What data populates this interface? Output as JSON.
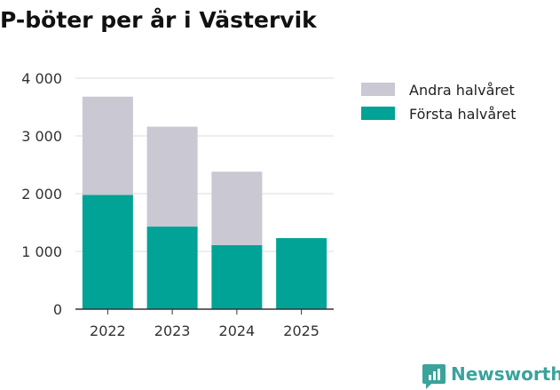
{
  "chart_data": {
    "type": "bar",
    "stacked": true,
    "title": "P-böter per år i Västervik",
    "xlabel": "",
    "ylabel": "",
    "categories": [
      "2022",
      "2023",
      "2024",
      "2025"
    ],
    "series": [
      {
        "name": "Första halvåret",
        "color": "#00a396",
        "values": [
          1980,
          1430,
          1110,
          1230
        ]
      },
      {
        "name": "Andra halvåret",
        "color": "#c9c8d3",
        "values": [
          1700,
          1730,
          1270,
          null
        ]
      }
    ],
    "ylim": [
      0,
      4000
    ],
    "yticks": [
      0,
      1000,
      2000,
      3000,
      4000
    ],
    "ytick_labels": [
      "0",
      "1 000",
      "2 000",
      "3 000",
      "4 000"
    ],
    "grid": true,
    "legend_position": "top-right",
    "legend_order": [
      "Andra halvåret",
      "Första halvåret"
    ]
  },
  "brand": {
    "name": "Newsworthy",
    "icon": "newsworthy-logo-icon",
    "color": "#3aa39b"
  }
}
